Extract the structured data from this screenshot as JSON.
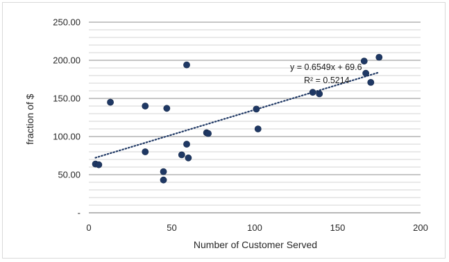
{
  "chart_data": {
    "type": "scatter",
    "xlabel": "Number of Customer Served",
    "ylabel": "fraction of $",
    "xlim": [
      0,
      200
    ],
    "ylim": [
      0,
      250
    ],
    "x_ticks": [
      0,
      50,
      100,
      150,
      200
    ],
    "x_tick_labels": [
      "0",
      "50",
      "100",
      "150",
      "200"
    ],
    "y_ticks": [
      0,
      50,
      100,
      150,
      200,
      250
    ],
    "y_tick_labels": [
      "-",
      "50.00",
      "100.00",
      "150.00",
      "200.00",
      "250.00"
    ],
    "minor_gridline_step": 10,
    "grid": true,
    "legend": "none",
    "marker_color": "#1f3864",
    "series": [
      {
        "x": [
          4,
          6,
          13,
          34,
          34,
          45,
          45,
          47,
          56,
          59,
          59,
          60,
          71,
          72,
          101,
          102,
          135,
          139,
          166,
          167,
          170,
          175
        ],
        "y": [
          64,
          63,
          145,
          140,
          80,
          54,
          43,
          137,
          76,
          194,
          90,
          72,
          105,
          104,
          136,
          110,
          158,
          156,
          199,
          183,
          171,
          204
        ]
      }
    ],
    "trendline": {
      "type": "linear",
      "slope": 0.6549,
      "intercept": 69.6,
      "x_range": [
        4,
        175
      ],
      "style": "dotted",
      "color": "#1f3864",
      "equation_label": "y = 0.6549x + 69.6",
      "r2_label": "R² = 0.5214"
    }
  }
}
